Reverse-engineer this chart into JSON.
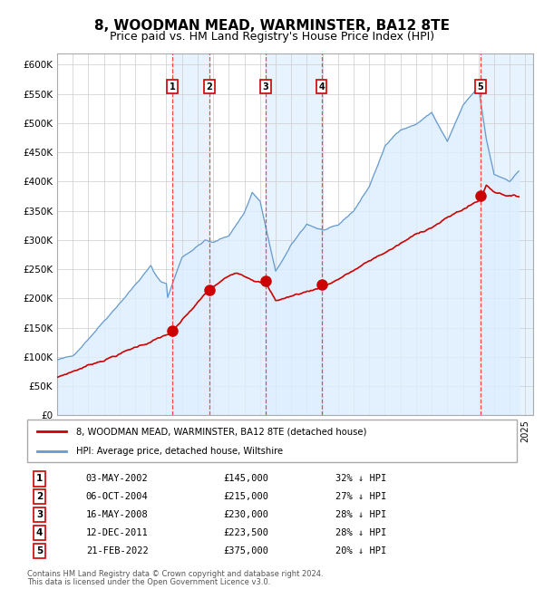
{
  "title": "8, WOODMAN MEAD, WARMINSTER, BA12 8TE",
  "subtitle": "Price paid vs. HM Land Registry's House Price Index (HPI)",
  "title_fontsize": 11,
  "subtitle_fontsize": 9,
  "ylim": [
    0,
    620000
  ],
  "yticks": [
    0,
    50000,
    100000,
    150000,
    200000,
    250000,
    300000,
    350000,
    400000,
    450000,
    500000,
    550000,
    600000
  ],
  "ytick_labels": [
    "£0",
    "£50K",
    "£100K",
    "£150K",
    "£200K",
    "£250K",
    "£300K",
    "£350K",
    "£400K",
    "£450K",
    "£500K",
    "£550K",
    "£600K"
  ],
  "xlim_start": 1995.0,
  "xlim_end": 2025.5,
  "legend_line1": "8, WOODMAN MEAD, WARMINSTER, BA12 8TE (detached house)",
  "legend_line2": "HPI: Average price, detached house, Wiltshire",
  "footer1": "Contains HM Land Registry data © Crown copyright and database right 2024.",
  "footer2": "This data is licensed under the Open Government Licence v3.0.",
  "price_line_color": "#cc0000",
  "hpi_line_color": "#6699cc",
  "hpi_fill_color": "#ddeeff",
  "sale_marker_color": "#cc0000",
  "sale_marker_size": 8,
  "vline_color": "#ff4444",
  "shade_color": "#ddeeff",
  "transaction_box_color": "#cc0000",
  "transactions": [
    {
      "num": 1,
      "date_str": "03-MAY-2002",
      "date_x": 2002.37,
      "price": 145000,
      "price_str": "£145,000",
      "hpi_pct": "32% ↓ HPI"
    },
    {
      "num": 2,
      "date_str": "06-OCT-2004",
      "date_x": 2004.76,
      "price": 215000,
      "price_str": "£215,000",
      "hpi_pct": "27% ↓ HPI"
    },
    {
      "num": 3,
      "date_str": "16-MAY-2008",
      "date_x": 2008.37,
      "price": 230000,
      "price_str": "£230,000",
      "hpi_pct": "28% ↓ HPI"
    },
    {
      "num": 4,
      "date_str": "12-DEC-2011",
      "date_x": 2011.94,
      "price": 223500,
      "price_str": "£223,500",
      "hpi_pct": "28% ↓ HPI"
    },
    {
      "num": 5,
      "date_str": "21-FEB-2022",
      "date_x": 2022.13,
      "price": 375000,
      "price_str": "£375,000",
      "hpi_pct": "20% ↓ HPI"
    }
  ]
}
